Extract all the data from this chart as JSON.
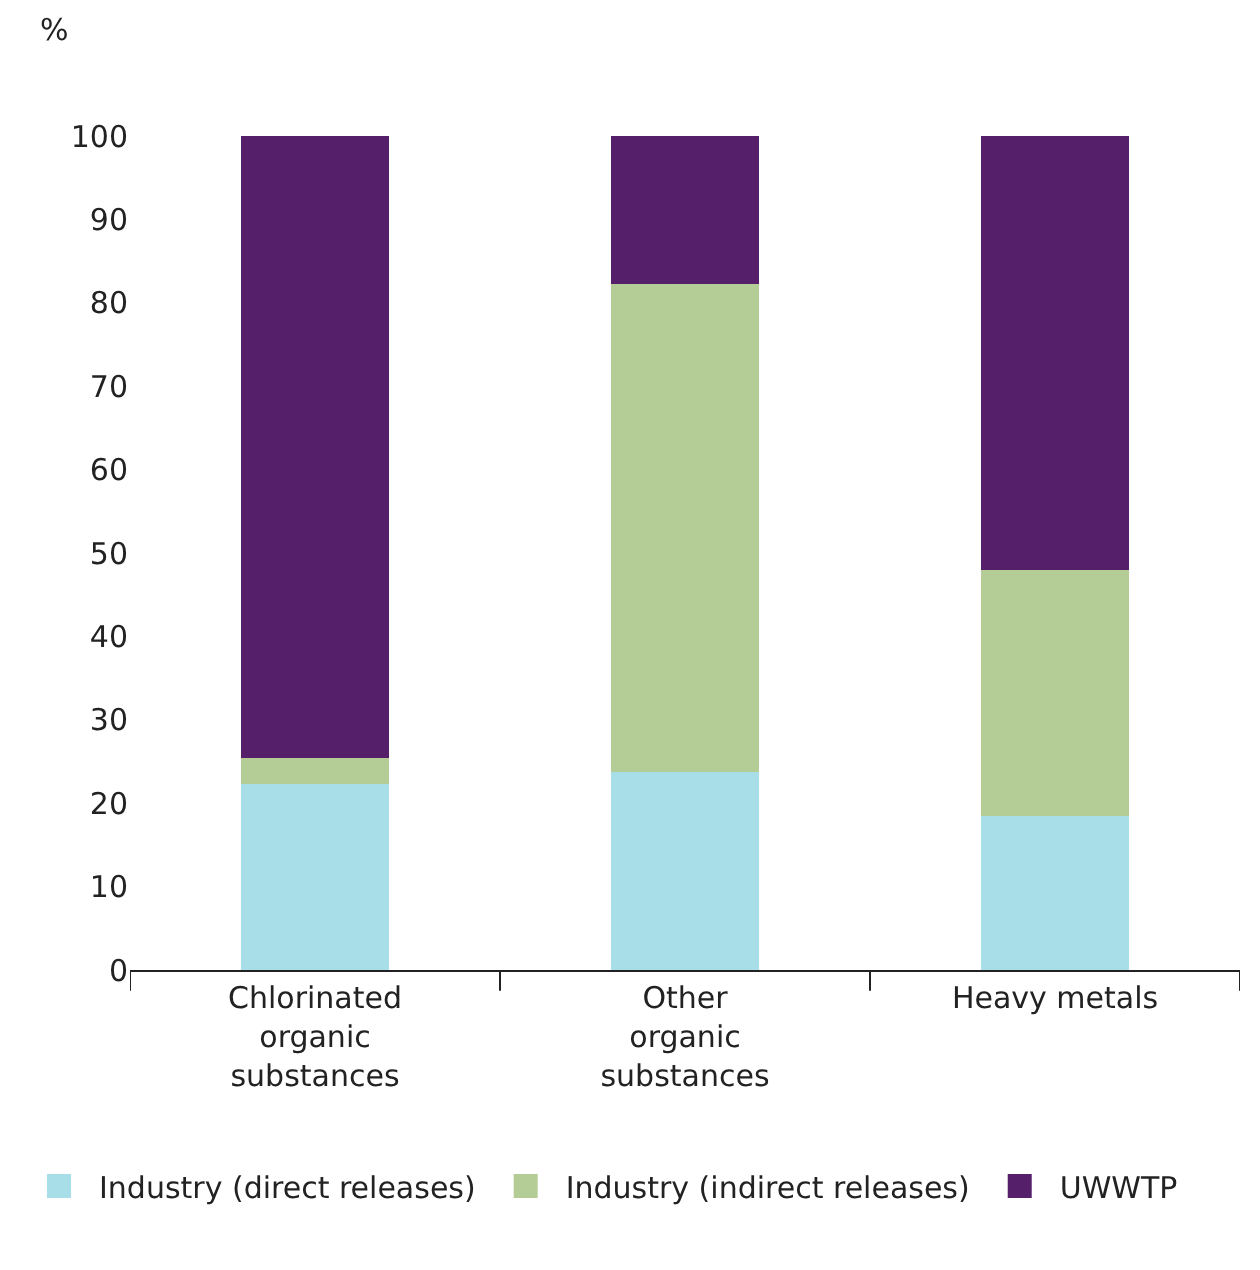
{
  "chart_data": {
    "type": "bar",
    "stacked": true,
    "ylabel": "%",
    "categories": [
      "Chlorinated organic substances",
      "Other organic substances",
      "Heavy metals"
    ],
    "series": [
      {
        "name": "Industry (direct releases)",
        "color": "#a8dee7",
        "values": [
          22.3,
          23.7,
          18.5
        ]
      },
      {
        "name": "Industry (indirect releases)",
        "color": "#b4cc95",
        "values": [
          3.1,
          58.6,
          29.5
        ]
      },
      {
        "name": "UWWTP",
        "color": "#561f69",
        "values": [
          74.6,
          17.7,
          52.0
        ]
      }
    ],
    "ylim": [
      0,
      100
    ],
    "yticks": [
      0,
      10,
      20,
      30,
      40,
      50,
      60,
      70,
      80,
      90,
      100
    ],
    "grid": false,
    "legend": "bottom"
  }
}
